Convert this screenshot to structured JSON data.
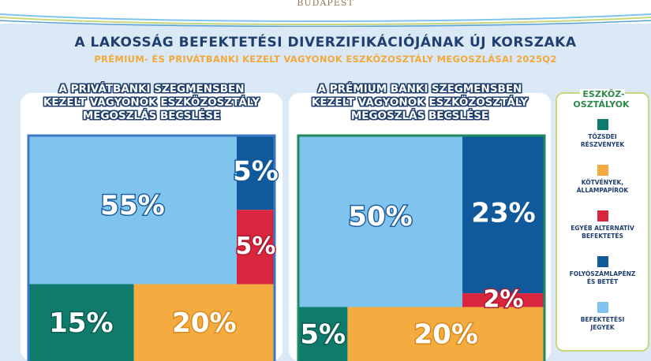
{
  "header": {
    "brand": "BUDAPEST",
    "title": "A LAKOSSÁG BEFEKTETÉSI DIVERZIFIKÁCIÓJÁNAK ÚJ KORSZAKA",
    "subtitle": "PRÉMIUM- ÉS PRIVÁTBANKI KEZELT VAGYONOK ESZKÖZOSZTÁLY MEGOSZLÁSAI 2025Q2"
  },
  "legend": {
    "title": "ESZKÖZ-\nOSZTÁLYOK",
    "items": [
      {
        "label": "TŐZSDEI\nRÉSZVÉNYEK",
        "color": "#0e7b6c"
      },
      {
        "label": "KÖTVÉNYEK,\nÁLLAMPAPÍROK",
        "color": "#f4ab40"
      },
      {
        "label": "EGYÉB ALTERNATÍV\nBEFEKTETÉS",
        "color": "#d7263d"
      },
      {
        "label": "FOLYÓSZÁMLAPÉNZ\nÉS BETÉT",
        "color": "#10599b"
      },
      {
        "label": "BEFEKTETÉSI\nJEGYEK",
        "color": "#7fc4ec"
      }
    ]
  },
  "chart_data": [
    {
      "type": "treemap",
      "title": "A PRIVÁTBANKI SZEGMENSBEN\nKEZELT VAGYONOK ESZKÖZOSZTÁLY\nMEGOSZLÁS BECSLÉSE",
      "segments": [
        {
          "category": "BEFEKTETÉSI JEGYEK",
          "value": 55,
          "label": "55%"
        },
        {
          "category": "FOLYÓSZÁMLAPÉNZ ÉS BETÉT",
          "value": 5,
          "label": "5%"
        },
        {
          "category": "EGYÉB ALTERNATÍV BEFEKTETÉS",
          "value": 5,
          "label": "5%"
        },
        {
          "category": "TŐZSDEI RÉSZVÉNYEK",
          "value": 15,
          "label": "15%"
        },
        {
          "category": "KÖTVÉNYEK, ÁLLAMPAPÍROK",
          "value": 20,
          "label": "20%"
        }
      ]
    },
    {
      "type": "treemap",
      "title": "A PRÉMIUM BANKI SZEGMENSBEN\nKEZELT VAGYONOK ESZKÖZOSZTÁLY\nMEGOSZLÁS BECSLÉSE",
      "segments": [
        {
          "category": "BEFEKTETÉSI JEGYEK",
          "value": 50,
          "label": "50%"
        },
        {
          "category": "FOLYÓSZÁMLAPÉNZ ÉS BETÉT",
          "value": 23,
          "label": "23%"
        },
        {
          "category": "EGYÉB ALTERNATÍV BEFEKTETÉS",
          "value": 2,
          "label": "2%"
        },
        {
          "category": "TŐZSDEI RÉSZVÉNYEK",
          "value": 5,
          "label": "5%"
        },
        {
          "category": "KÖTVÉNYEK, ÁLLAMPAPÍROK",
          "value": 20,
          "label": "20%"
        }
      ]
    }
  ]
}
